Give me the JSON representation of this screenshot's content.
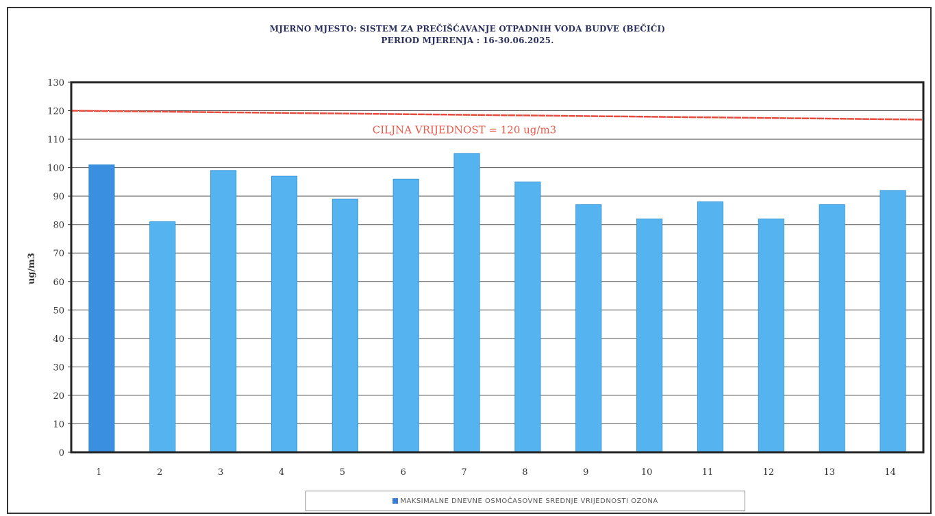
{
  "title_line1": "MJERNO MJESTO: SISTEM  ZA PREČIŠĆAVANJE  OTPADNIH VODA BUDVE (BEČIĆI)",
  "title_line2": "PERIOD MJERENJA : 16-30.06.2025.",
  "colors": {
    "bar": "#55b4f0",
    "bar_stroke": "#2f8fd0",
    "first_bar": "#3a8fe0",
    "target_line": "#e84a3c",
    "target_text": "#e85a4a",
    "legend_swatch": "#3a7bd5"
  },
  "chart_data": {
    "type": "bar",
    "categories": [
      "1",
      "2",
      "3",
      "4",
      "5",
      "6",
      "7",
      "8",
      "9",
      "10",
      "11",
      "12",
      "13",
      "14"
    ],
    "values": [
      101,
      81,
      99,
      97,
      89,
      96,
      105,
      95,
      87,
      82,
      88,
      82,
      87,
      92
    ],
    "series_name": "MAKSIMALNE DNEVNE OSMOČASOVNE SREDNJE VRIJEDNOSTI OZONA",
    "ylabel": "ug/m3",
    "xlabel": "",
    "ylim": [
      0,
      130
    ],
    "yticks": [
      0,
      10,
      20,
      30,
      40,
      50,
      60,
      70,
      80,
      90,
      100,
      110,
      120,
      130
    ],
    "grid": true,
    "legend_position": "bottom",
    "target_value": 120,
    "target_label": "CILJNA VRIJEDNOST = 120 ug/m3"
  }
}
